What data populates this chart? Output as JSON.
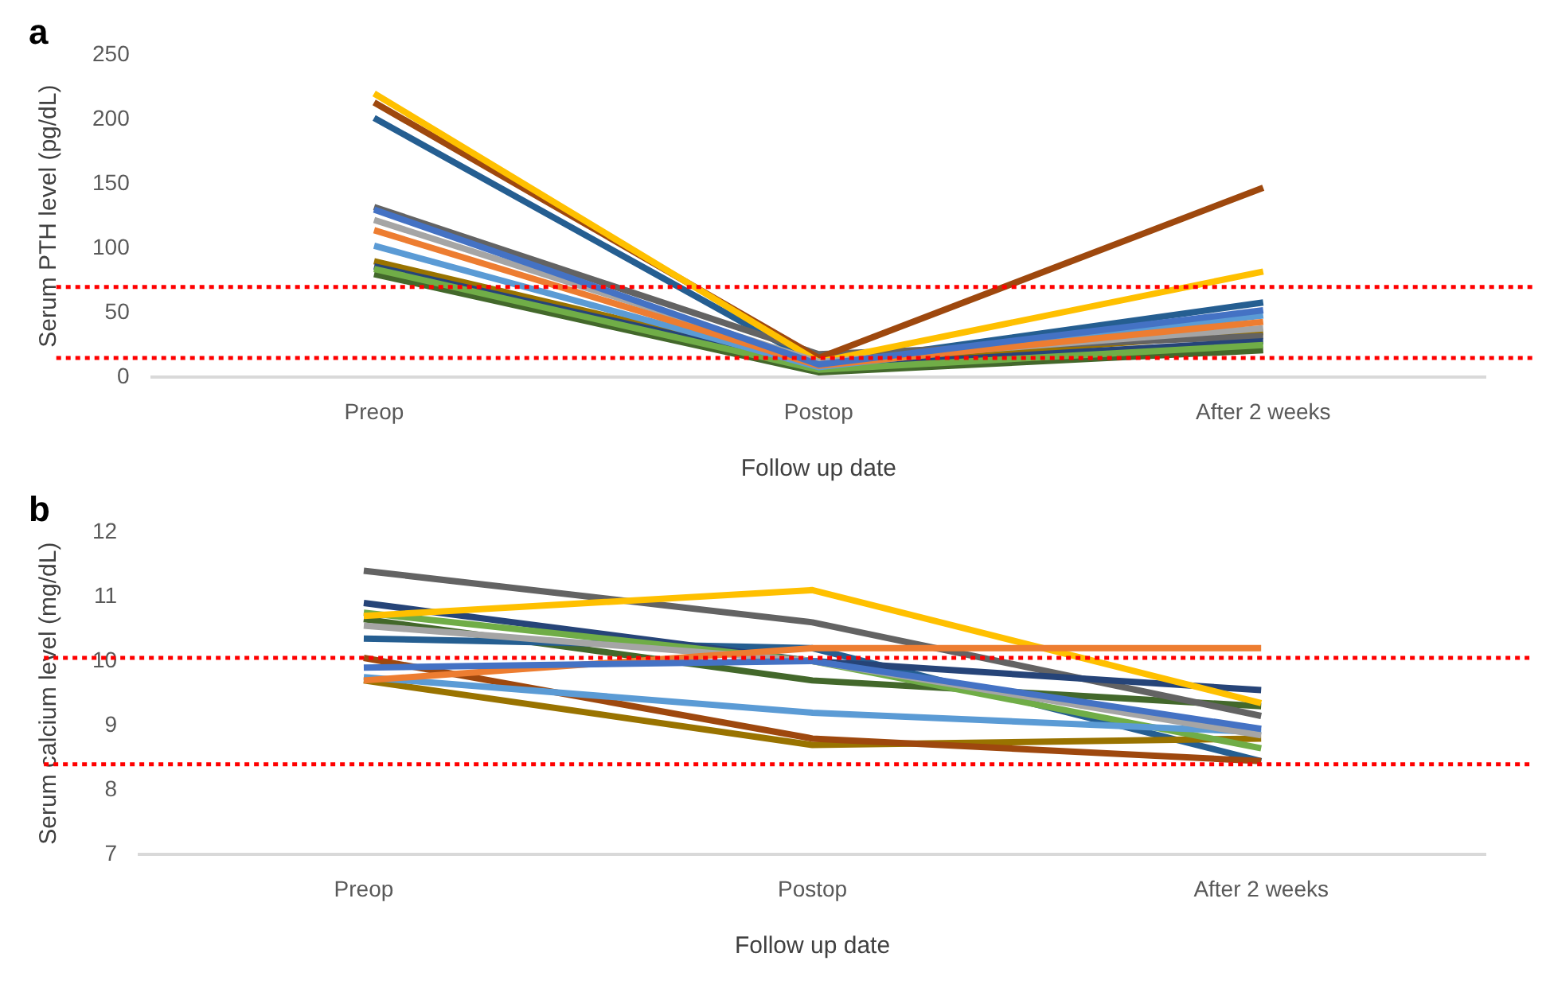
{
  "chart_data": [
    {
      "type": "line",
      "title": "a",
      "xlabel": "Follow up date",
      "ylabel": "Serum PTH level (pg/dL)",
      "categories": [
        "Preop",
        "Postop",
        "After 2 weeks"
      ],
      "ylim": [
        0,
        250
      ],
      "yticks": [
        0,
        50,
        100,
        150,
        200,
        250
      ],
      "grid": false,
      "legend": false,
      "marker": "none",
      "line_style": "solid",
      "series": [
        {
          "color": "#4472c4",
          "values": [
            130,
            10,
            52
          ]
        },
        {
          "color": "#ed7d31",
          "values": [
            114,
            9,
            43
          ]
        },
        {
          "color": "#a5a5a5",
          "values": [
            122,
            12,
            38
          ]
        },
        {
          "color": "#ffc000",
          "values": [
            220,
            12,
            82
          ]
        },
        {
          "color": "#5b9bd5",
          "values": [
            102,
            8,
            48
          ]
        },
        {
          "color": "#70ad47",
          "values": [
            84,
            6,
            25
          ]
        },
        {
          "color": "#264478",
          "values": [
            86,
            8,
            28
          ]
        },
        {
          "color": "#9e480e",
          "values": [
            213,
            15,
            147
          ]
        },
        {
          "color": "#636363",
          "values": [
            132,
            18,
            32
          ]
        },
        {
          "color": "#997300",
          "values": [
            90,
            9,
            35
          ]
        },
        {
          "color": "#255e91",
          "values": [
            201,
            10,
            58
          ]
        },
        {
          "color": "#43682b",
          "values": [
            80,
            4,
            21
          ]
        }
      ],
      "ref_lines": [
        {
          "axis": "y",
          "value": 70,
          "color": "#ff0000",
          "line_style": "dotted"
        },
        {
          "axis": "y",
          "value": 15,
          "color": "#ff0000",
          "line_style": "dotted"
        }
      ]
    },
    {
      "type": "line",
      "title": "b",
      "xlabel": "Follow up date",
      "ylabel": "Serum calcium level (mg/dL)",
      "categories": [
        "Preop",
        "Postop",
        "After 2 weeks"
      ],
      "ylim": [
        7,
        12
      ],
      "yticks": [
        7,
        8,
        9,
        10,
        11,
        12
      ],
      "grid": false,
      "legend": false,
      "marker": "none",
      "line_style": "solid",
      "series": [
        {
          "color": "#4472c4",
          "values": [
            9.9,
            10.0,
            8.95
          ]
        },
        {
          "color": "#ed7d31",
          "values": [
            9.7,
            10.2,
            10.2
          ]
        },
        {
          "color": "#a5a5a5",
          "values": [
            10.55,
            10.0,
            8.85
          ]
        },
        {
          "color": "#ffc000",
          "values": [
            10.7,
            11.1,
            9.35
          ]
        },
        {
          "color": "#5b9bd5",
          "values": [
            9.75,
            9.2,
            8.9
          ]
        },
        {
          "color": "#70ad47",
          "values": [
            10.75,
            10.0,
            8.65
          ]
        },
        {
          "color": "#264478",
          "values": [
            10.9,
            10.0,
            9.55
          ]
        },
        {
          "color": "#9e480e",
          "values": [
            10.05,
            8.8,
            8.45
          ]
        },
        {
          "color": "#636363",
          "values": [
            11.4,
            10.6,
            9.15
          ]
        },
        {
          "color": "#997300",
          "values": [
            9.7,
            8.7,
            8.8
          ]
        },
        {
          "color": "#255e91",
          "values": [
            10.35,
            10.2,
            8.45
          ]
        },
        {
          "color": "#43682b",
          "values": [
            10.65,
            9.7,
            9.3
          ]
        }
      ],
      "ref_lines": [
        {
          "axis": "y",
          "value": 10.05,
          "color": "#ff0000",
          "line_style": "dotted"
        },
        {
          "axis": "y",
          "value": 8.4,
          "color": "#ff0000",
          "line_style": "dotted"
        }
      ]
    }
  ]
}
